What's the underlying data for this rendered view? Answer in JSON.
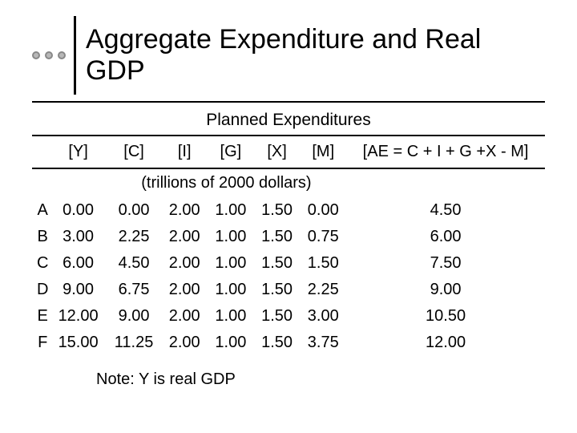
{
  "title": "Aggregate Expenditure and Real GDP",
  "planned_label": "Planned Expenditures",
  "unit_label": "(trillions of 2000 dollars)",
  "note": "Note: Y is real GDP",
  "columns": {
    "lab": "",
    "y": "[Y]",
    "c": "[C]",
    "i": "[I]",
    "g": "[G]",
    "x": "[X]",
    "m": "[M]",
    "ae": "[AE = C + I + G +X - M]"
  },
  "rows": [
    {
      "lab": "A",
      "y": "0.00",
      "c": "0.00",
      "i": "2.00",
      "g": "1.00",
      "x": "1.50",
      "m": "0.00",
      "ae": "4.50"
    },
    {
      "lab": "B",
      "y": "3.00",
      "c": "2.25",
      "i": "2.00",
      "g": "1.00",
      "x": "1.50",
      "m": "0.75",
      "ae": "6.00"
    },
    {
      "lab": "C",
      "y": "6.00",
      "c": "4.50",
      "i": "2.00",
      "g": "1.00",
      "x": "1.50",
      "m": "1.50",
      "ae": "7.50"
    },
    {
      "lab": "D",
      "y": "9.00",
      "c": "6.75",
      "i": "2.00",
      "g": "1.00",
      "x": "1.50",
      "m": "2.25",
      "ae": "9.00"
    },
    {
      "lab": "E",
      "y": "12.00",
      "c": "9.00",
      "i": "2.00",
      "g": "1.00",
      "x": "1.50",
      "m": "3.00",
      "ae": "10.50"
    },
    {
      "lab": "F",
      "y": "15.00",
      "c": "11.25",
      "i": "2.00",
      "g": "1.00",
      "x": "1.50",
      "m": "3.75",
      "ae": "12.00"
    }
  ],
  "style": {
    "background_color": "#ffffff",
    "text_color": "#000000",
    "dot_fill": "#b8b8b8",
    "dot_border": "#888888",
    "rule_color": "#000000",
    "title_fontsize": 34,
    "body_fontsize": 20
  }
}
